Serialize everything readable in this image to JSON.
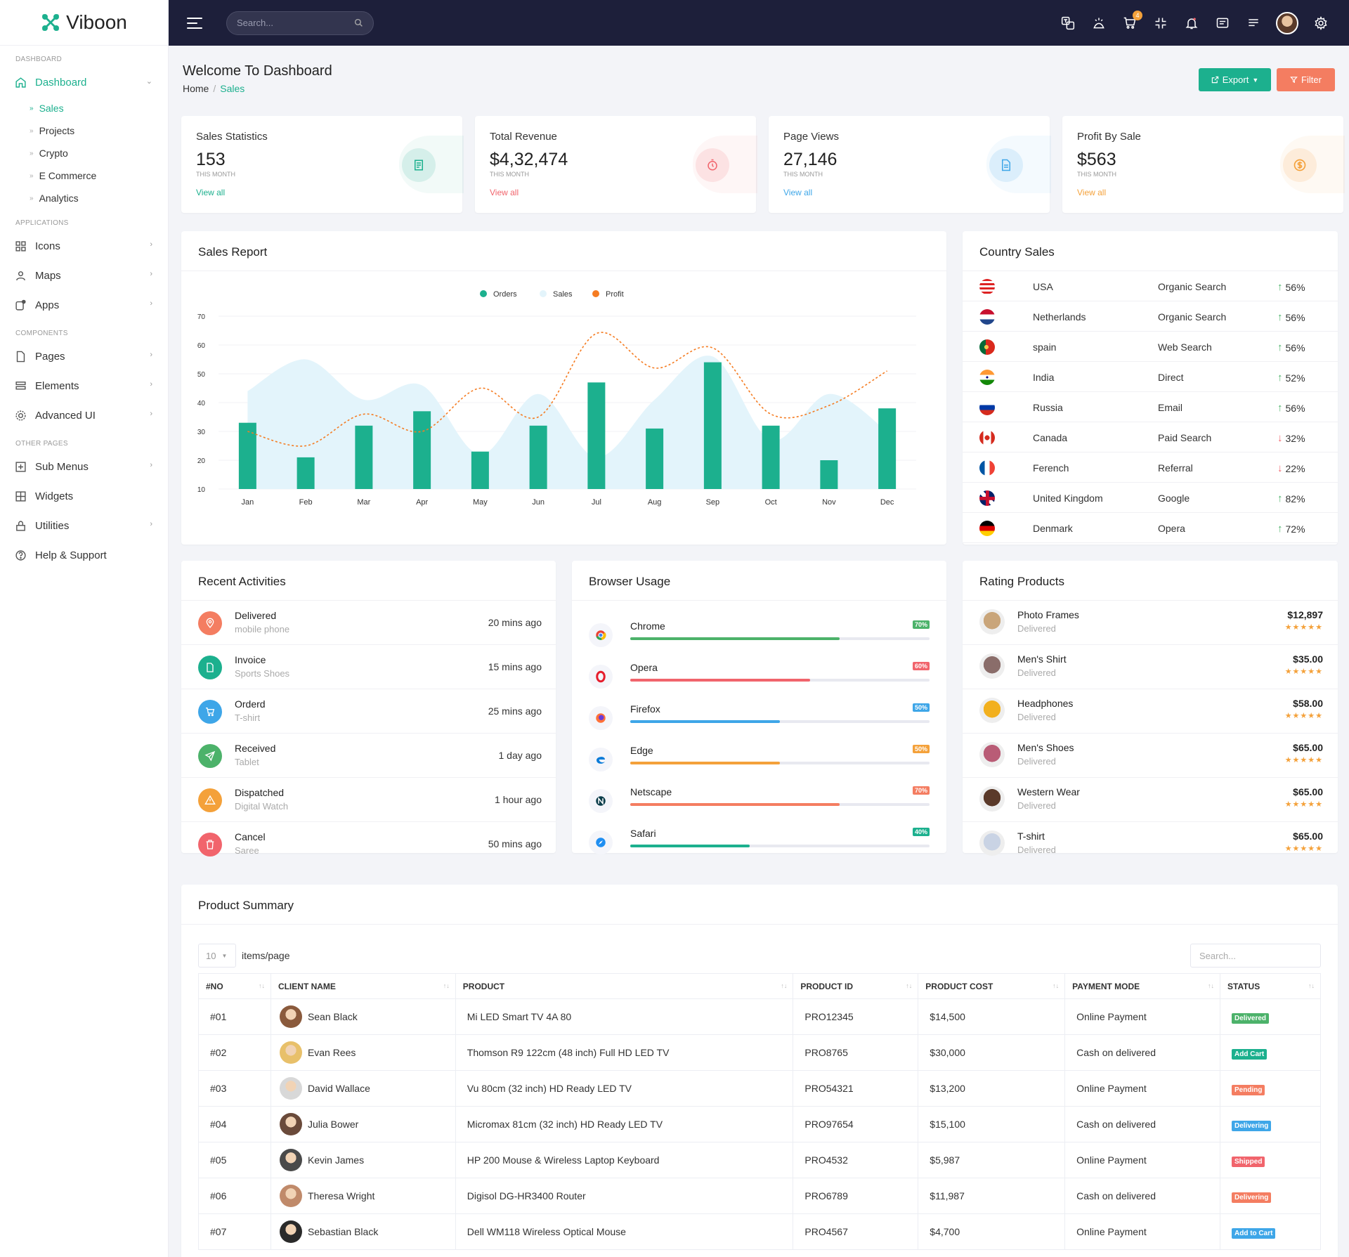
{
  "brand": {
    "name": "Viboon",
    "color": "#1cb08e"
  },
  "sidebar": {
    "sections": {
      "dashboard": "DASHBOARD",
      "applications": "APPLICATIONS",
      "components": "COMPONENTS",
      "other": "OTHER PAGES"
    },
    "dashboard": {
      "label": "Dashboard",
      "icon": "home-icon"
    },
    "sub_items": [
      "Sales",
      "Projects",
      "Crypto",
      "E Commerce",
      "Analytics"
    ],
    "apps": [
      {
        "label": "Icons",
        "icon": "grid-icon"
      },
      {
        "label": "Maps",
        "icon": "user-icon"
      },
      {
        "label": "Apps",
        "icon": "apps-icon"
      }
    ],
    "components": [
      {
        "label": "Pages",
        "icon": "file-icon"
      },
      {
        "label": "Elements",
        "icon": "layers-icon"
      },
      {
        "label": "Advanced UI",
        "icon": "gear-icon"
      }
    ],
    "other": [
      {
        "label": "Sub Menus",
        "icon": "plus-square-icon"
      },
      {
        "label": "Widgets",
        "icon": "widget-icon"
      },
      {
        "label": "Utilities",
        "icon": "lock-icon"
      },
      {
        "label": "Help & Support",
        "icon": "help-icon"
      }
    ]
  },
  "topbar": {
    "search_placeholder": "Search...",
    "cart_count": "4",
    "icons": [
      "translate-icon",
      "theme-icon",
      "cart-icon",
      "fullscreen-icon",
      "bell-icon",
      "message-icon",
      "menu-lines-icon",
      "avatar",
      "gear-icon"
    ]
  },
  "header": {
    "title": "Welcome To Dashboard",
    "breadcrumb_home": "Home",
    "breadcrumb_current": "Sales",
    "export_label": "Export",
    "filter_label": "Filter"
  },
  "stats": [
    {
      "label": "Sales Statistics",
      "value": "153",
      "sub": "THIS MONTH",
      "link": "View all",
      "color": "#1cb08e",
      "icon": "receipt-icon"
    },
    {
      "label": "Total Revenue",
      "value": "$4,32,474",
      "sub": "THIS MONTH",
      "link": "View all",
      "color": "#f1646c",
      "icon": "timer-icon"
    },
    {
      "label": "Page Views",
      "value": "27,146",
      "sub": "THIS MONTH",
      "link": "View all",
      "color": "#3ea6e8",
      "icon": "document-icon"
    },
    {
      "label": "Profit By Sale",
      "value": "$563",
      "sub": "THIS MONTH",
      "link": "View all",
      "color": "#f4a13a",
      "icon": "dollar-icon"
    }
  ],
  "sales_report": {
    "title": "Sales Report"
  },
  "chart_data": {
    "type": "bar",
    "categories": [
      "Jan",
      "Feb",
      "Mar",
      "Apr",
      "May",
      "Jun",
      "Jul",
      "Aug",
      "Sep",
      "Oct",
      "Nov",
      "Dec"
    ],
    "series": [
      {
        "name": "Orders",
        "type": "bar",
        "color": "#1cb08e",
        "values": [
          33,
          21,
          32,
          37,
          23,
          32,
          47,
          31,
          54,
          32,
          20,
          38
        ]
      },
      {
        "name": "Sales",
        "type": "area",
        "color": "#e3f4fb",
        "values": [
          44,
          55,
          41,
          46,
          22,
          43,
          21,
          41,
          56,
          27,
          43,
          30
        ]
      },
      {
        "name": "Profit",
        "type": "line",
        "color": "#f57c22",
        "values": [
          30,
          25,
          36,
          30,
          45,
          35,
          64,
          52,
          59,
          36,
          39,
          51
        ]
      }
    ],
    "ylim": [
      10,
      70
    ],
    "yticks": [
      10,
      20,
      30,
      40,
      50,
      60,
      70
    ],
    "legend": "top-center",
    "grid": true
  },
  "country_sales": {
    "title": "Country Sales",
    "rows": [
      {
        "country": "USA",
        "source": "Organic Search",
        "percent": "56%",
        "trend": "up",
        "flag": "us-flag-icon"
      },
      {
        "country": "Netherlands",
        "source": "Organic Search",
        "percent": "56%",
        "trend": "up",
        "flag": "nl-flag-icon"
      },
      {
        "country": "spain",
        "source": "Web Search",
        "percent": "56%",
        "trend": "up",
        "flag": "pt-flag-icon"
      },
      {
        "country": "India",
        "source": "Direct",
        "percent": "52%",
        "trend": "up",
        "flag": "in-flag-icon"
      },
      {
        "country": "Russia",
        "source": "Email",
        "percent": "56%",
        "trend": "up",
        "flag": "ru-flag-icon"
      },
      {
        "country": "Canada",
        "source": "Paid Search",
        "percent": "32%",
        "trend": "down",
        "flag": "ca-flag-icon"
      },
      {
        "country": "Ferench",
        "source": "Referral",
        "percent": "22%",
        "trend": "down",
        "flag": "fr-flag-icon"
      },
      {
        "country": "United Kingdom",
        "source": "Google",
        "percent": "82%",
        "trend": "up",
        "flag": "uk-flag-icon"
      },
      {
        "country": "Denmark",
        "source": "Opera",
        "percent": "72%",
        "trend": "up",
        "flag": "de-flag-icon"
      }
    ]
  },
  "recent_activities": {
    "title": "Recent Activities",
    "rows": [
      {
        "title": "Delivered",
        "sub": "mobile phone",
        "time": "20 mins ago",
        "color": "#f47d61",
        "icon": "location-icon"
      },
      {
        "title": "Invoice",
        "sub": "Sports Shoes",
        "time": "15 mins ago",
        "color": "#1cb08e",
        "icon": "file-icon"
      },
      {
        "title": "Orderd",
        "sub": "T-shirt",
        "time": "25 mins ago",
        "color": "#3ea6e8",
        "icon": "cart-icon"
      },
      {
        "title": "Received",
        "sub": "Tablet",
        "time": "1 day ago",
        "color": "#4cb26a",
        "icon": "send-icon"
      },
      {
        "title": "Dispatched",
        "sub": "Digital Watch",
        "time": "1 hour ago",
        "color": "#f4a13a",
        "icon": "warning-icon"
      },
      {
        "title": "Cancel",
        "sub": "Saree",
        "time": "50 mins ago",
        "color": "#f1646c",
        "icon": "trash-icon"
      }
    ]
  },
  "browser_usage": {
    "title": "Browser Usage",
    "rows": [
      {
        "name": "Chrome",
        "percent": "70%",
        "value": 70,
        "color": "#4cb26a",
        "icon": "chrome-icon"
      },
      {
        "name": "Opera",
        "percent": "60%",
        "value": 60,
        "color": "#f1646c",
        "icon": "opera-icon"
      },
      {
        "name": "Firefox",
        "percent": "50%",
        "value": 50,
        "color": "#3ea6e8",
        "icon": "firefox-icon"
      },
      {
        "name": "Edge",
        "percent": "50%",
        "value": 50,
        "color": "#f4a13a",
        "icon": "edge-icon"
      },
      {
        "name": "Netscape",
        "percent": "70%",
        "value": 70,
        "color": "#f47d61",
        "icon": "netscape-icon"
      },
      {
        "name": "Safari",
        "percent": "40%",
        "value": 40,
        "color": "#1cb08e",
        "icon": "safari-icon"
      }
    ]
  },
  "rating_products": {
    "title": "Rating Products",
    "stars": "★★★★★",
    "rows": [
      {
        "name": "Photo Frames",
        "status": "Delivered",
        "price": "$12,897",
        "color": "#c9a57a"
      },
      {
        "name": "Men's Shirt",
        "status": "Delivered",
        "price": "$35.00",
        "color": "#8a6d6a"
      },
      {
        "name": "Headphones",
        "status": "Delivered",
        "price": "$58.00",
        "color": "#f2b01e"
      },
      {
        "name": "Men's Shoes",
        "status": "Delivered",
        "price": "$65.00",
        "color": "#b95c76"
      },
      {
        "name": "Western Wear",
        "status": "Delivered",
        "price": "$65.00",
        "color": "#5b3a2a"
      },
      {
        "name": "T-shirt",
        "status": "Delivered",
        "price": "$65.00",
        "color": "#c9d3e4"
      }
    ]
  },
  "product_summary": {
    "title": "Product Summary",
    "page_size": "10",
    "items_per_page": "items/page",
    "search_placeholder": "Search...",
    "columns": [
      "#NO",
      "CLIENT NAME",
      "PRODUCT",
      "PRODUCT ID",
      "PRODUCT COST",
      "PAYMENT MODE",
      "STATUS"
    ],
    "rows": [
      {
        "no": "#01",
        "client": "Sean Black",
        "product": "Mi LED Smart TV 4A 80",
        "pid": "PRO12345",
        "cost": "$14,500",
        "payment": "Online Payment",
        "status": "Delivered",
        "status_color": "#4cb26a",
        "avatar_color": "#8a5a3c"
      },
      {
        "no": "#02",
        "client": "Evan Rees",
        "product": "Thomson R9 122cm (48 inch) Full HD LED TV",
        "pid": "PRO8765",
        "cost": "$30,000",
        "payment": "Cash on delivered",
        "status": "Add Cart",
        "status_color": "#1cb08e",
        "avatar_color": "#e8c06a"
      },
      {
        "no": "#03",
        "client": "David Wallace",
        "product": "Vu 80cm (32 inch) HD Ready LED TV",
        "pid": "PRO54321",
        "cost": "$13,200",
        "payment": "Online Payment",
        "status": "Pending",
        "status_color": "#f47d61",
        "avatar_color": "#d8d8d8"
      },
      {
        "no": "#04",
        "client": "Julia Bower",
        "product": "Micromax 81cm (32 inch) HD Ready LED TV",
        "pid": "PRO97654",
        "cost": "$15,100",
        "payment": "Cash on delivered",
        "status": "Delivering",
        "status_color": "#3ea6e8",
        "avatar_color": "#6a4a3a"
      },
      {
        "no": "#05",
        "client": "Kevin James",
        "product": "HP 200 Mouse & Wireless Laptop Keyboard",
        "pid": "PRO4532",
        "cost": "$5,987",
        "payment": "Online Payment",
        "status": "Shipped",
        "status_color": "#f1646c",
        "avatar_color": "#4a4a4a"
      },
      {
        "no": "#06",
        "client": "Theresa Wright",
        "product": "Digisol DG-HR3400 Router",
        "pid": "PRO6789",
        "cost": "$11,987",
        "payment": "Cash on delivered",
        "status": "Delivering",
        "status_color": "#f47d61",
        "avatar_color": "#c08a6a"
      },
      {
        "no": "#07",
        "client": "Sebastian Black",
        "product": "Dell WM118 Wireless Optical Mouse",
        "pid": "PRO4567",
        "cost": "$4,700",
        "payment": "Online Payment",
        "status": "Add to Cart",
        "status_color": "#3ea6e8",
        "avatar_color": "#2a2a2a"
      }
    ]
  }
}
